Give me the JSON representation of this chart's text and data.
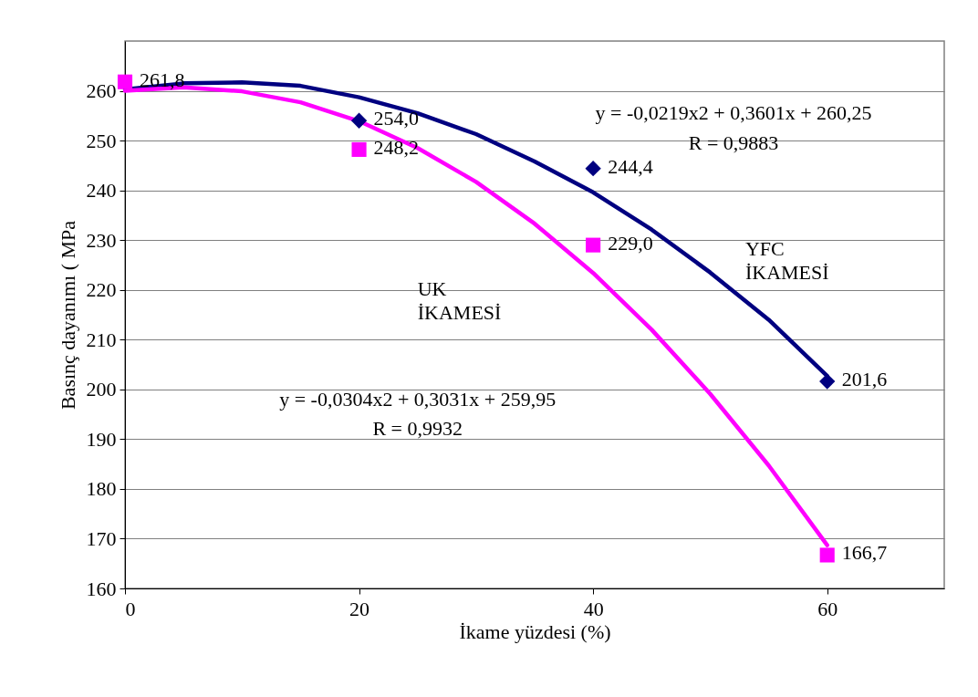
{
  "chart_data": {
    "type": "scatter",
    "xlabel": "İkame yüzdesi (%)",
    "ylabel": "Basınç dayanımı ( MPa",
    "xlim": [
      0,
      70
    ],
    "xticks": [
      0,
      20,
      40,
      60
    ],
    "ylim": [
      160,
      270
    ],
    "yticks": [
      160,
      170,
      180,
      190,
      200,
      210,
      220,
      230,
      240,
      250,
      260
    ],
    "grid": "y",
    "annotations": [
      "y = -0,0219x2 + 0,3601x + 260,25",
      "R = 0,9883",
      "y = -0,0304x2 + 0,3031x + 259,95",
      "R = 0,9932",
      "YFC İKAMESİ",
      "UK İKAMESİ"
    ],
    "series": [
      {
        "color": "#000080",
        "marker": "diamond",
        "x": [
          20,
          40,
          60
        ],
        "values": [
          254.0,
          244.4,
          201.6
        ],
        "value_labels": [
          "254,0",
          "244,4",
          "201,6"
        ]
      },
      {
        "color": "#ff00ff",
        "marker": "square",
        "x": [
          0,
          20,
          40,
          60
        ],
        "values": [
          261.8,
          248.2,
          229.0,
          166.7
        ],
        "value_labels": [
          "261,8",
          "248,2",
          "229,0",
          "166,7"
        ]
      },
      {
        "type": "line",
        "color": "#000080",
        "line_style": "solid",
        "x": [
          0,
          5,
          10,
          15,
          20,
          25,
          30,
          35,
          40,
          45,
          50,
          55,
          60
        ],
        "values": [
          260.3,
          261.5,
          261.7,
          261.0,
          258.7,
          255.5,
          251.3,
          245.8,
          239.6,
          232.1,
          223.5,
          214.0,
          202.7
        ]
      },
      {
        "type": "line",
        "color": "#ff00ff",
        "line_style": "solid",
        "x": [
          0,
          5,
          10,
          15,
          20,
          25,
          30,
          35,
          40,
          45,
          50,
          55,
          60
        ],
        "values": [
          260.0,
          260.7,
          259.9,
          257.7,
          253.9,
          248.5,
          241.7,
          233.3,
          223.4,
          212.0,
          199.1,
          184.7,
          168.7
        ]
      }
    ]
  }
}
